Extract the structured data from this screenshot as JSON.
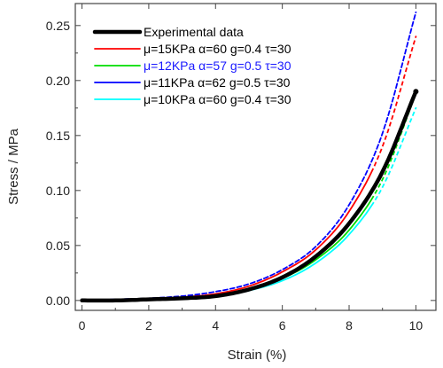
{
  "chart_data": {
    "type": "line",
    "xlabel": "Strain (%)",
    "ylabel": "Stress / MPa",
    "xlim": [
      -0.2,
      10.6
    ],
    "ylim": [
      -0.009,
      0.27
    ],
    "x_ticks": [
      0,
      2,
      4,
      6,
      8,
      10
    ],
    "y_ticks": [
      0.0,
      0.05,
      0.1,
      0.15,
      0.2,
      0.25
    ],
    "x_tick_labels": [
      "0",
      "2",
      "4",
      "6",
      "8",
      "10"
    ],
    "y_tick_labels": [
      "0.00",
      "0.05",
      "0.10",
      "0.15",
      "0.20",
      "0.25"
    ],
    "legend_position": "top-left",
    "grid": false,
    "series": [
      {
        "name": "Experimental data",
        "color": "#000000",
        "style": "solid-thick",
        "x": [
          0,
          1,
          2,
          3,
          4,
          5,
          6,
          7,
          8,
          9,
          10
        ],
        "y": [
          0.0,
          0.0,
          0.001,
          0.002,
          0.004,
          0.01,
          0.021,
          0.04,
          0.07,
          0.117,
          0.19
        ]
      },
      {
        "name": "μ=15KPa α=60 g=0.4 τ=30",
        "color": "#ff0000",
        "style": "solid-dashed",
        "x": [
          0,
          1,
          2,
          3,
          4,
          5,
          6,
          7,
          8,
          9,
          10
        ],
        "y": [
          0.0,
          0.0,
          0.001,
          0.003,
          0.006,
          0.013,
          0.026,
          0.046,
          0.081,
          0.14,
          0.24
        ]
      },
      {
        "name": "μ=12KPa α=57 g=0.5 τ=30",
        "color": "#00dd00",
        "style": "solid-dashed",
        "x": [
          0,
          1,
          2,
          3,
          4,
          5,
          6,
          7,
          8,
          9,
          10
        ],
        "y": [
          0.0,
          0.0,
          0.001,
          0.002,
          0.004,
          0.01,
          0.02,
          0.037,
          0.064,
          0.11,
          0.188
        ]
      },
      {
        "name": "μ=11KPa α=62 g=0.5 τ=30",
        "color": "#0000ff",
        "style": "dashed",
        "x": [
          0,
          1,
          2,
          3,
          4,
          5,
          6,
          7,
          8,
          9,
          10
        ],
        "y": [
          0.0,
          0.001,
          0.002,
          0.004,
          0.008,
          0.015,
          0.028,
          0.049,
          0.087,
          0.152,
          0.262
        ]
      },
      {
        "name": "μ=10KPa α=60 g=0.4 τ=30",
        "color": "#00ffff",
        "style": "solid-dashed",
        "x": [
          0,
          1,
          2,
          3,
          4,
          5,
          6,
          7,
          8,
          9,
          10
        ],
        "y": [
          0.0,
          0.0,
          0.001,
          0.002,
          0.004,
          0.009,
          0.018,
          0.034,
          0.06,
          0.103,
          0.175
        ]
      }
    ],
    "legend_text_colors": [
      "#000000",
      "#000000",
      "#1a1aff",
      "#000000",
      "#000000"
    ]
  }
}
